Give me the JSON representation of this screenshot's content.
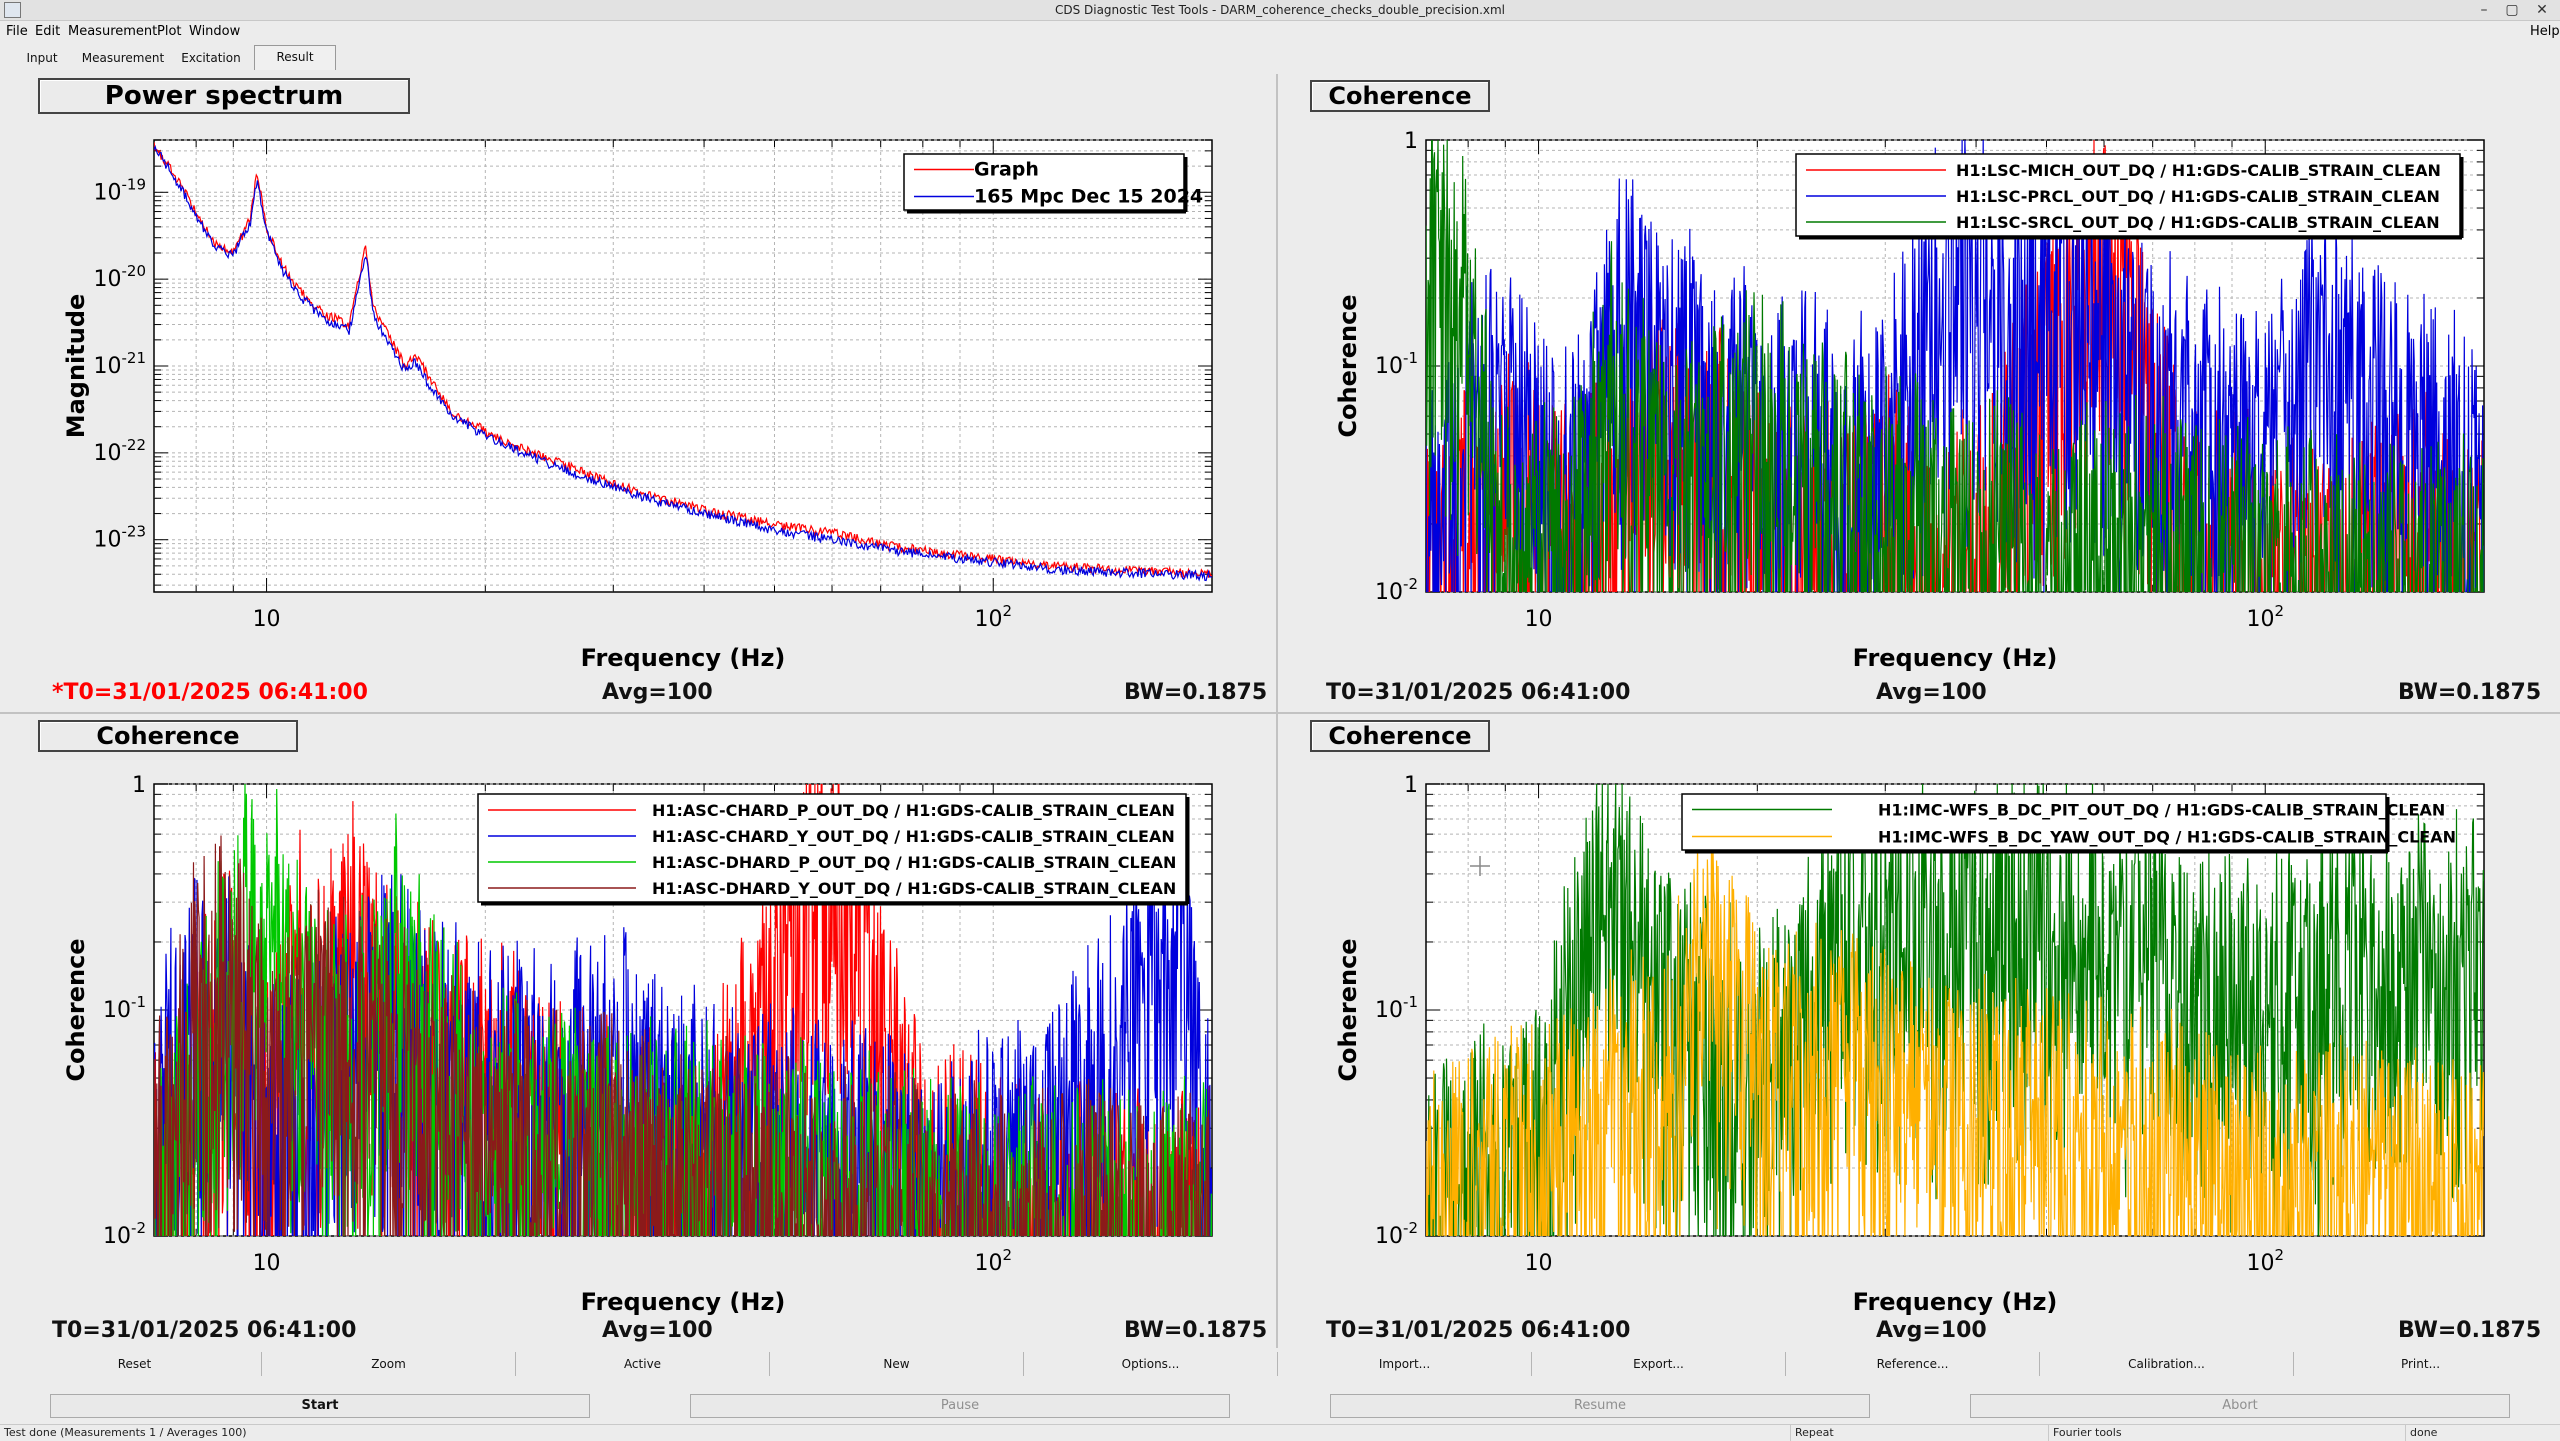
{
  "window": {
    "title": "CDS Diagnostic Test Tools - DARM_coherence_checks_double_precision.xml",
    "min_glyph": "–",
    "max_glyph": "▢",
    "close_glyph": "✕"
  },
  "menu": {
    "file": "File",
    "edit": "Edit",
    "measurement": "Measurement",
    "plot": "Plot",
    "window": "Window",
    "help": "Help"
  },
  "tabs": {
    "input": "Input",
    "measurement": "Measurement",
    "excitation": "Excitation",
    "result": "Result"
  },
  "panels": {
    "top_left": {
      "title": "Power spectrum",
      "t0": "*T0=31/01/2025 06:41:00",
      "avg": "Avg=100",
      "bw": "BW=0.1875",
      "xlabel": "Frequency (Hz)",
      "ylabel": "Magnitude",
      "legend": [
        "Graph",
        "165 Mpc Dec 15 2024"
      ]
    },
    "top_right": {
      "title": "Coherence",
      "t0": "T0=31/01/2025 06:41:00",
      "avg": "Avg=100",
      "bw": "BW=0.1875",
      "xlabel": "Frequency (Hz)",
      "ylabel": "Coherence",
      "legend": [
        "H1:LSC-MICH_OUT_DQ / H1:GDS-CALIB_STRAIN_CLEAN",
        "H1:LSC-PRCL_OUT_DQ / H1:GDS-CALIB_STRAIN_CLEAN",
        "H1:LSC-SRCL_OUT_DQ / H1:GDS-CALIB_STRAIN_CLEAN"
      ]
    },
    "bottom_left": {
      "title": "Coherence",
      "t0": "T0=31/01/2025 06:41:00",
      "avg": "Avg=100",
      "bw": "BW=0.1875",
      "xlabel": "Frequency (Hz)",
      "ylabel": "Coherence",
      "legend": [
        "H1:ASC-CHARD_P_OUT_DQ / H1:GDS-CALIB_STRAIN_CLEAN",
        "H1:ASC-CHARD_Y_OUT_DQ / H1:GDS-CALIB_STRAIN_CLEAN",
        "H1:ASC-DHARD_P_OUT_DQ / H1:GDS-CALIB_STRAIN_CLEAN",
        "H1:ASC-DHARD_Y_OUT_DQ / H1:GDS-CALIB_STRAIN_CLEAN"
      ]
    },
    "bottom_right": {
      "title": "Coherence",
      "t0": "T0=31/01/2025 06:41:00",
      "avg": "Avg=100",
      "bw": "BW=0.1875",
      "xlabel": "Frequency (Hz)",
      "ylabel": "Coherence",
      "legend": [
        "H1:IMC-WFS_B_DC_PIT_OUT_DQ / H1:GDS-CALIB_STRAIN_CLEAN",
        "H1:IMC-WFS_B_DC_YAW_OUT_DQ / H1:GDS-CALIB_STRAIN_CLEAN"
      ]
    }
  },
  "buttons_row1": [
    "Reset",
    "Zoom",
    "Active",
    "New",
    "Options...",
    "Import...",
    "Export...",
    "Reference...",
    "Calibration...",
    "Print..."
  ],
  "buttons_row2": {
    "start": "Start",
    "pause": "Pause",
    "resume": "Resume",
    "abort": "Abort"
  },
  "status": {
    "message": "Test done (Measurements 1 / Averages 100)",
    "repeat": "Repeat",
    "fourier": "Fourier tools",
    "state": "done"
  },
  "colors": {
    "red": "#ff0000",
    "blue": "#0000dd",
    "darkgreen": "#007a00",
    "green": "#00c800",
    "maroon": "#8b1a1a",
    "orange": "#ffb000"
  },
  "chart_data": [
    {
      "type": "line",
      "title": "Power spectrum",
      "xlabel": "Frequency (Hz)",
      "ylabel": "Magnitude",
      "xscale": "log",
      "yscale": "log",
      "xlim": [
        7,
        200
      ],
      "ylim": [
        2.5e-24,
        4e-19
      ],
      "x_ticks": [
        "10",
        "10^2"
      ],
      "y_ticks": [
        "10^-23",
        "10^-22",
        "10^-21",
        "10^-20",
        "10^-19"
      ],
      "legend": "top-right",
      "grid": true,
      "series": [
        {
          "name": "Graph",
          "color": "#ff0000",
          "x": [
            7,
            7.5,
            8,
            8.5,
            9,
            9.5,
            9.7,
            10,
            10.5,
            11,
            12,
            13,
            13.7,
            14,
            15,
            15.5,
            16,
            17,
            18,
            20,
            22,
            25,
            28,
            30,
            35,
            40,
            45,
            50,
            60,
            70,
            80,
            100,
            120,
            150,
            180,
            200
          ],
          "y": [
            3.5e-19,
            1.5e-19,
            6e-20,
            2.5e-20,
            2e-20,
            5e-20,
            1.7e-19,
            4e-20,
            1.5e-20,
            8e-21,
            4e-21,
            3e-21,
            2.5e-20,
            5e-21,
            1.7e-21,
            1e-21,
            1.4e-21,
            6e-22,
            3e-22,
            1.8e-22,
            1.2e-22,
            8e-23,
            5.5e-23,
            4.5e-23,
            3e-23,
            2.2e-23,
            1.8e-23,
            1.5e-23,
            1.2e-23,
            9e-24,
            7.5e-24,
            6e-24,
            5e-24,
            4.5e-24,
            4.2e-24,
            4e-24
          ]
        },
        {
          "name": "165 Mpc Dec 15 2024",
          "color": "#0000dd",
          "x": [
            7,
            7.5,
            8,
            8.5,
            9,
            9.5,
            9.7,
            10,
            10.5,
            11,
            12,
            13,
            13.7,
            14,
            15,
            15.5,
            16,
            17,
            18,
            20,
            22,
            25,
            28,
            30,
            35,
            40,
            45,
            50,
            60,
            70,
            80,
            100,
            120,
            150,
            180,
            200
          ],
          "y": [
            3.4e-19,
            1.4e-19,
            5.5e-20,
            2.3e-20,
            1.9e-20,
            4.5e-20,
            1.4e-19,
            3.5e-20,
            1.3e-20,
            7e-21,
            3.5e-21,
            2.6e-21,
            2e-20,
            4e-21,
            1.4e-21,
            9e-22,
            1.1e-21,
            5e-22,
            2.6e-22,
            1.6e-22,
            1.1e-22,
            7e-23,
            5e-23,
            4e-23,
            2.7e-23,
            2e-23,
            1.6e-23,
            1.3e-23,
            1e-23,
            8e-24,
            6.8e-24,
            5.5e-24,
            4.6e-24,
            4.2e-24,
            4e-24,
            3.8e-24
          ]
        }
      ]
    },
    {
      "type": "line",
      "title": "Coherence",
      "xlabel": "Frequency (Hz)",
      "ylabel": "Coherence",
      "xscale": "log",
      "yscale": "log",
      "xlim": [
        7,
        200
      ],
      "ylim": [
        0.01,
        1
      ],
      "x_ticks": [
        "10",
        "10^2"
      ],
      "y_ticks": [
        "10^-2",
        "10^-1",
        "1"
      ],
      "legend": "top-right",
      "grid": true,
      "series": [
        {
          "name": "H1:LSC-MICH_OUT_DQ / H1:GDS-CALIB_STRAIN_CLEAN",
          "color": "#ff0000",
          "x": [
            7,
            9,
            11,
            13,
            15,
            20,
            25,
            30,
            35,
            40,
            59.9,
            80,
            120,
            150,
            180,
            200
          ],
          "y": [
            0.02,
            0.05,
            0.03,
            0.06,
            0.1,
            0.04,
            0.03,
            0.04,
            0.02,
            0.03,
            0.6,
            0.03,
            0.02,
            0.03,
            0.03,
            0.02
          ]
        },
        {
          "name": "H1:LSC-PRCL_OUT_DQ / H1:GDS-CALIB_STRAIN_CLEAN",
          "color": "#0000dd",
          "x": [
            7,
            8,
            9,
            11,
            13,
            15,
            20,
            30,
            35,
            45,
            60,
            80,
            100,
            120,
            150,
            200
          ],
          "y": [
            0.03,
            0.1,
            0.12,
            0.05,
            0.3,
            0.2,
            0.1,
            0.08,
            0.5,
            0.4,
            0.3,
            0.1,
            0.08,
            0.2,
            0.1,
            0.06
          ]
        },
        {
          "name": "H1:LSC-SRCL_OUT_DQ / H1:GDS-CALIB_STRAIN_CLEAN",
          "color": "#007a00",
          "x": [
            7,
            7.5,
            8,
            8.5,
            9,
            11,
            13,
            15,
            20,
            30,
            50,
            80,
            120,
            200
          ],
          "y": [
            0.6,
            0.5,
            0.3,
            0.08,
            0.03,
            0.03,
            0.2,
            0.05,
            0.1,
            0.04,
            0.03,
            0.03,
            0.02,
            0.02
          ]
        }
      ]
    },
    {
      "type": "line",
      "title": "Coherence",
      "xlabel": "Frequency (Hz)",
      "ylabel": "Coherence",
      "xscale": "log",
      "yscale": "log",
      "xlim": [
        7,
        200
      ],
      "ylim": [
        0.01,
        1
      ],
      "x_ticks": [
        "10",
        "10^2"
      ],
      "y_ticks": [
        "10^-2",
        "10^-1",
        "1"
      ],
      "legend": "top-right",
      "grid": true,
      "series": [
        {
          "name": "H1:ASC-CHARD_P_OUT_DQ / H1:GDS-CALIB_STRAIN_CLEAN",
          "color": "#ff0000",
          "x": [
            7,
            8,
            9,
            10,
            11,
            12,
            13,
            15,
            20,
            25,
            30,
            40,
            59.9,
            80,
            120,
            200
          ],
          "y": [
            0.03,
            0.1,
            0.2,
            0.05,
            0.3,
            0.2,
            0.4,
            0.15,
            0.1,
            0.05,
            0.04,
            0.03,
            1,
            0.03,
            0.02,
            0.02
          ]
        },
        {
          "name": "H1:ASC-CHARD_Y_OUT_DQ / H1:GDS-CALIB_STRAIN_CLEAN",
          "color": "#0000dd",
          "x": [
            7,
            8,
            9,
            10,
            12,
            15,
            20,
            30,
            40,
            60,
            80,
            120,
            180,
            200
          ],
          "y": [
            0.05,
            0.25,
            0.15,
            0.05,
            0.1,
            0.2,
            0.08,
            0.1,
            0.05,
            0.04,
            0.03,
            0.04,
            0.5,
            0.03
          ]
        },
        {
          "name": "H1:ASC-DHARD_P_OUT_DQ / H1:GDS-CALIB_STRAIN_CLEAN",
          "color": "#00c800",
          "x": [
            7,
            8,
            9,
            10,
            11,
            13,
            15,
            20,
            30,
            60,
            100,
            200
          ],
          "y": [
            0.02,
            0.1,
            0.3,
            0.7,
            0.2,
            0.1,
            0.3,
            0.05,
            0.04,
            0.03,
            0.02,
            0.02
          ]
        },
        {
          "name": "H1:ASC-DHARD_Y_OUT_DQ / H1:GDS-CALIB_STRAIN_CLEAN",
          "color": "#8b1a1a",
          "x": [
            7,
            8,
            9,
            10,
            12,
            15,
            20,
            30,
            50,
            100,
            200
          ],
          "y": [
            0.03,
            0.2,
            0.3,
            0.1,
            0.15,
            0.1,
            0.05,
            0.04,
            0.03,
            0.02,
            0.02
          ]
        }
      ]
    },
    {
      "type": "line",
      "title": "Coherence",
      "xlabel": "Frequency (Hz)",
      "ylabel": "Coherence",
      "xscale": "log",
      "yscale": "log",
      "xlim": [
        7,
        200
      ],
      "ylim": [
        0.01,
        1
      ],
      "x_ticks": [
        "10",
        "10^2"
      ],
      "y_ticks": [
        "10^-2",
        "10^-1",
        "1"
      ],
      "legend": "top-right",
      "grid": true,
      "series": [
        {
          "name": "H1:IMC-WFS_B_DC_PIT_OUT_DQ / H1:GDS-CALIB_STRAIN_CLEAN",
          "color": "#007a00",
          "x": [
            7,
            8,
            10,
            12,
            13,
            15,
            20,
            25,
            30,
            40,
            60,
            80,
            100,
            150,
            200
          ],
          "y": [
            0.02,
            0.03,
            0.05,
            0.5,
            0.5,
            0.2,
            0.1,
            0.3,
            0.4,
            0.5,
            0.5,
            0.3,
            0.2,
            0.3,
            0.3
          ]
        },
        {
          "name": "H1:IMC-WFS_B_DC_YAW_OUT_DQ / H1:GDS-CALIB_STRAIN_CLEAN",
          "color": "#ffb000",
          "x": [
            7,
            8,
            10,
            15,
            17,
            19,
            20,
            25,
            30,
            40,
            60,
            80,
            100,
            200
          ],
          "y": [
            0.02,
            0.03,
            0.04,
            0.1,
            0.4,
            0.2,
            0.1,
            0.1,
            0.08,
            0.06,
            0.05,
            0.04,
            0.03,
            0.03
          ]
        }
      ]
    }
  ]
}
